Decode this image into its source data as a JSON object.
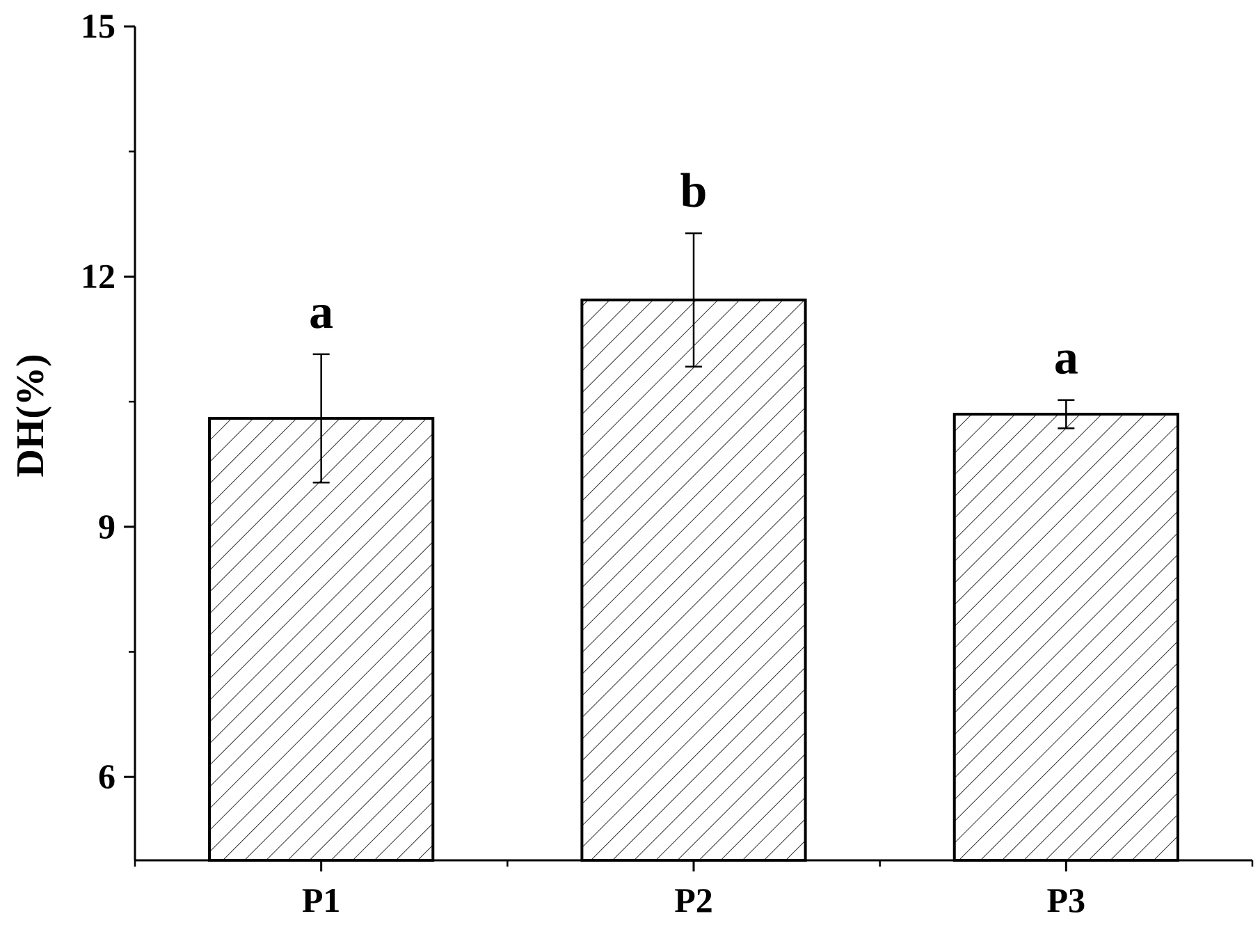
{
  "chart_data": {
    "type": "bar",
    "title": "",
    "xlabel": "",
    "ylabel": "DH(%)",
    "ylim": [
      5,
      15
    ],
    "yticks_major": [
      6,
      9,
      12,
      15
    ],
    "yticks_minor_step": 1.5,
    "categories": [
      "P1",
      "P2",
      "P3"
    ],
    "values": [
      10.3,
      11.72,
      10.35
    ],
    "errors": [
      0.77,
      0.8,
      0.17
    ],
    "significance": [
      "a",
      "b",
      "a"
    ],
    "grid": false,
    "legend": "none",
    "pattern": "diagonal-hatch",
    "colors": {
      "bar_stroke": "#000000",
      "hatch": "#000000",
      "background": "#ffffff"
    }
  }
}
